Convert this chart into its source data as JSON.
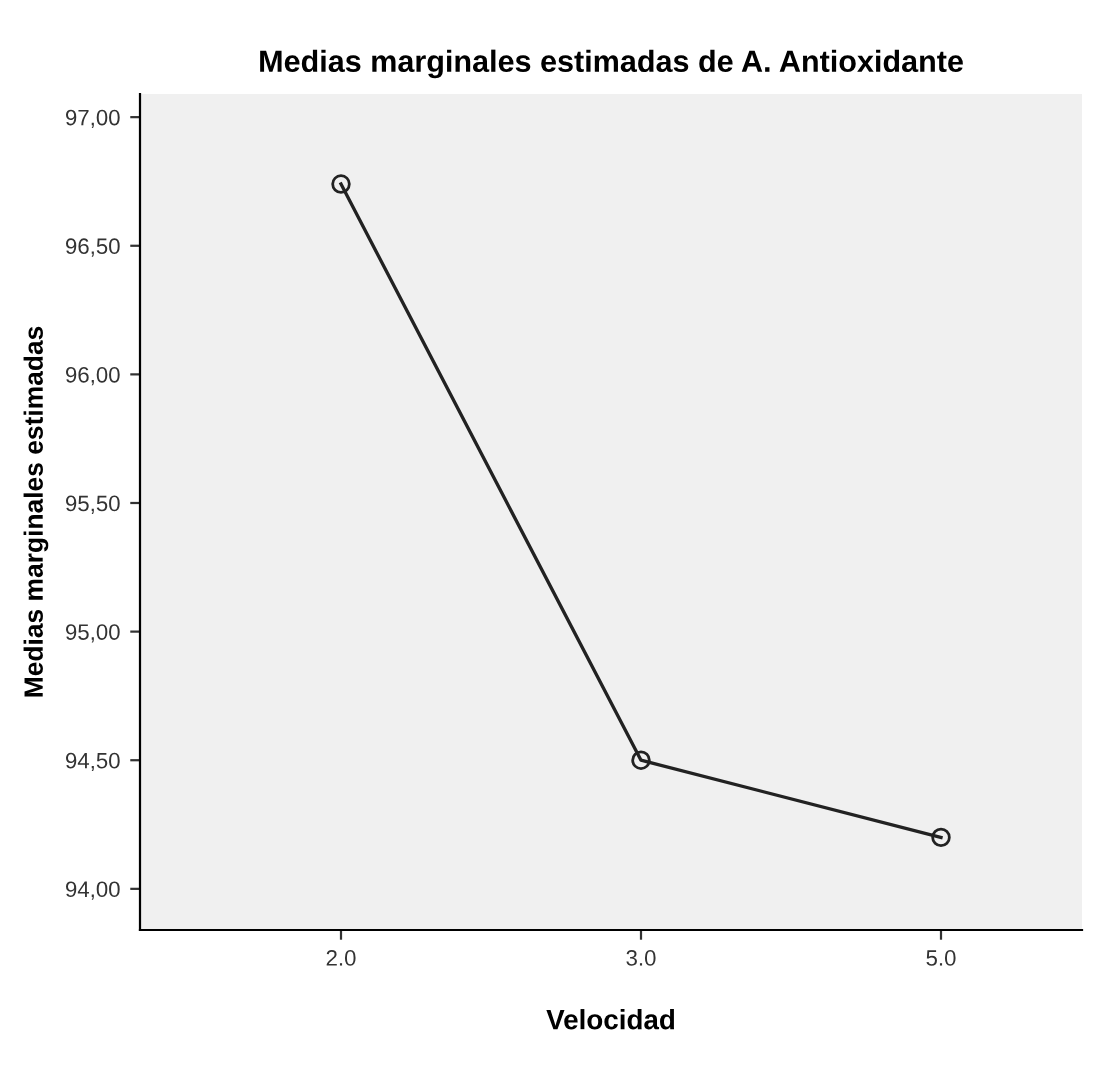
{
  "chart_data": {
    "type": "line",
    "title": "Medias marginales estimadas de A. Antioxidante",
    "xlabel": "Velocidad",
    "ylabel": "Medias marginales estimadas",
    "categories": [
      "2.0",
      "3.0",
      "5.0"
    ],
    "series": [
      {
        "color": "#222222",
        "values": [
          96.74,
          94.5,
          94.2
        ]
      }
    ],
    "ylim": [
      93.84,
      97.09
    ],
    "yticks": [
      {
        "value": 94,
        "label": "94,00"
      },
      {
        "value": 94.5,
        "label": "94,50"
      },
      {
        "value": 95,
        "label": "95,00"
      },
      {
        "value": 95.5,
        "label": "95,50"
      },
      {
        "value": 96,
        "label": "96,00"
      },
      {
        "value": 96.5,
        "label": "96,50"
      },
      {
        "value": 97,
        "label": "97,00"
      }
    ],
    "marker": "circle",
    "line_style": "solid",
    "grid": false
  }
}
